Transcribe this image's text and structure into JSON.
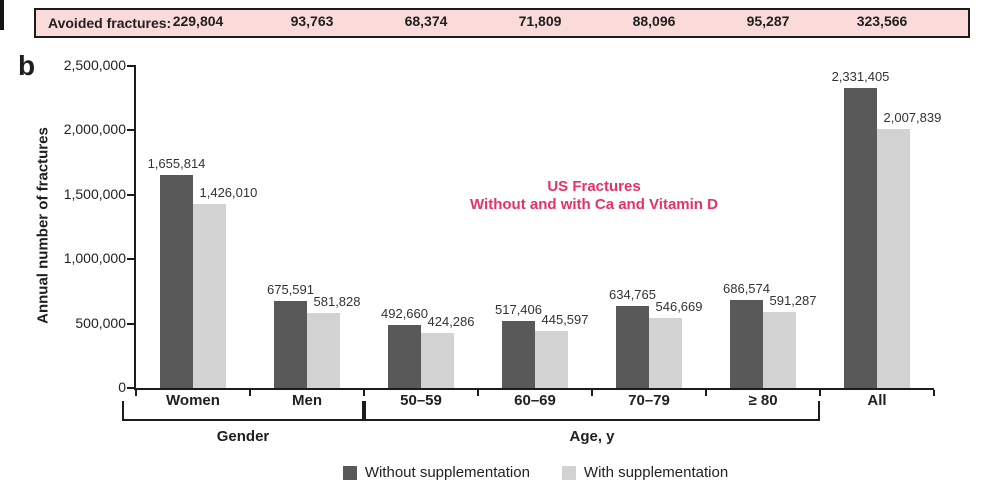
{
  "banner": {
    "label": "Avoided fractures:",
    "values": [
      "229,804",
      "93,763",
      "68,374",
      "71,809",
      "88,096",
      "95,287",
      "323,566"
    ]
  },
  "panel_label": "b",
  "chart_data": {
    "type": "bar",
    "title_lines": [
      "US Fractures",
      "Without and with Ca and Vitamin D"
    ],
    "title_color": "#e73069",
    "ylabel": "Annual number of fractures",
    "xlabel_groups": [
      "Gender",
      "Age, y"
    ],
    "ylim": [
      0,
      2500000
    ],
    "ytick_interval": 500000,
    "ytick_labels": [
      "0",
      "500,000",
      "1,000,000",
      "1,500,000",
      "2,000,000",
      "2,500,000"
    ],
    "grid": false,
    "legend_position": "bottom",
    "categories": [
      "Women",
      "Men",
      "50–59",
      "60–69",
      "70–79",
      "≥ 80",
      "All"
    ],
    "series": [
      {
        "name": "Without supplementation",
        "color": "#595959",
        "values": [
          1655814,
          675591,
          492660,
          517406,
          634765,
          686574,
          2331405
        ],
        "labels": [
          "1,655,814",
          "675,591",
          "492,660",
          "517,406",
          "634,765",
          "686,574",
          "2,331,405"
        ]
      },
      {
        "name": "With supplementation",
        "color": "#d2d2d2",
        "values": [
          1426010,
          581828,
          424286,
          445597,
          546669,
          591287,
          2007839
        ],
        "labels": [
          "1,426,010",
          "581,828",
          "424,286",
          "445,597",
          "546,669",
          "591,287",
          "2,007,839"
        ]
      }
    ],
    "avoided_fractures": [
      229804,
      93763,
      68374,
      71809,
      88096,
      95287,
      323566
    ],
    "group_brackets": [
      {
        "label": "Gender",
        "from": 0,
        "to": 1
      },
      {
        "label": "Age, y",
        "from": 2,
        "to": 5
      }
    ]
  }
}
